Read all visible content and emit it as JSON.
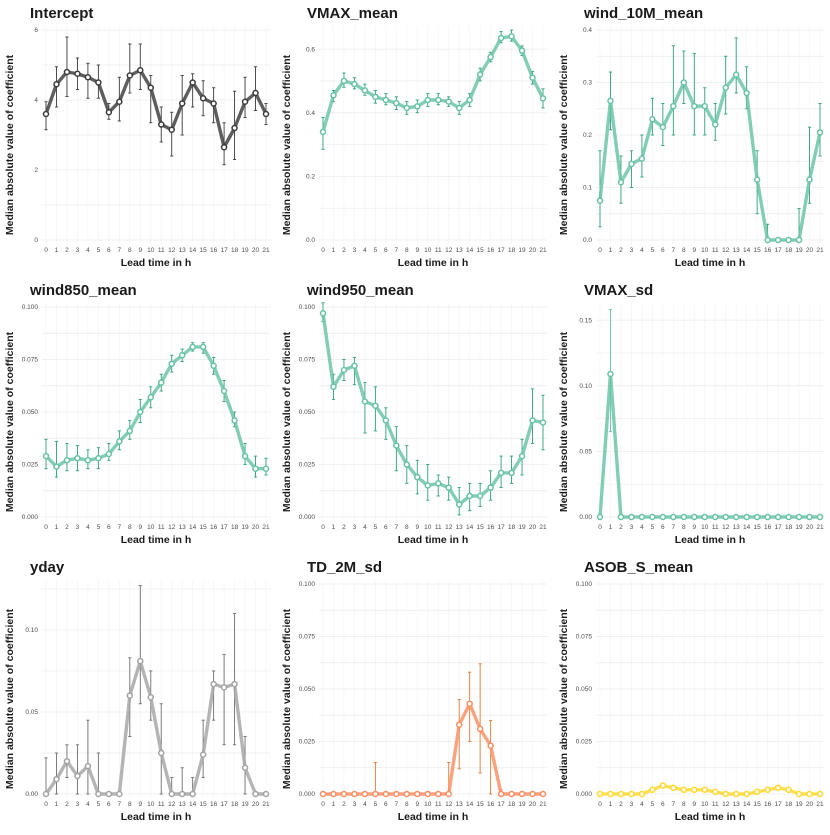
{
  "figure": {
    "xlabel": "Lead time in h",
    "ylabel": "Median absolute value of coefficient"
  },
  "chart_data": [
    {
      "type": "line",
      "title": "Intercept",
      "color": "#3a3a3a",
      "err_color": "#3a3a3a",
      "ylim": [
        0,
        6
      ],
      "yticks": [
        0,
        2,
        4,
        6
      ],
      "ytick_labels": [
        "0",
        "2",
        "4",
        "6"
      ],
      "x": [
        0,
        1,
        2,
        3,
        4,
        5,
        6,
        7,
        8,
        9,
        10,
        11,
        12,
        13,
        14,
        15,
        16,
        17,
        18,
        19,
        20,
        21
      ],
      "values": [
        3.6,
        4.45,
        4.8,
        4.75,
        4.65,
        4.5,
        3.65,
        3.95,
        4.7,
        4.85,
        4.35,
        3.3,
        3.15,
        3.9,
        4.5,
        4.05,
        3.9,
        2.65,
        3.2,
        3.95,
        4.2,
        3.6
      ],
      "lower": [
        3.15,
        3.8,
        4.1,
        4.3,
        4.05,
        4.05,
        3.45,
        3.4,
        4.2,
        4.3,
        3.35,
        2.8,
        2.4,
        3.0,
        3.8,
        3.55,
        3.35,
        2.15,
        2.3,
        3.5,
        3.7,
        3.3
      ],
      "upper": [
        3.95,
        4.95,
        5.8,
        5.2,
        5.05,
        5.0,
        3.9,
        4.65,
        5.6,
        5.6,
        4.7,
        3.8,
        3.65,
        4.7,
        4.75,
        4.55,
        4.35,
        3.35,
        4.25,
        4.65,
        4.95,
        3.9
      ]
    },
    {
      "type": "line",
      "title": "VMAX_mean",
      "color": "#66c2a5",
      "err_color": "#2ca07a",
      "ylim": [
        0,
        0.66
      ],
      "yticks": [
        0,
        0.2,
        0.4,
        0.6
      ],
      "ytick_labels": [
        "0.0",
        "0.2",
        "0.4",
        "0.6"
      ],
      "x": [
        0,
        1,
        2,
        3,
        4,
        5,
        6,
        7,
        8,
        9,
        10,
        11,
        12,
        13,
        14,
        15,
        16,
        17,
        18,
        19,
        20,
        21
      ],
      "values": [
        0.34,
        0.455,
        0.5,
        0.49,
        0.47,
        0.45,
        0.44,
        0.43,
        0.415,
        0.42,
        0.44,
        0.44,
        0.435,
        0.415,
        0.44,
        0.52,
        0.575,
        0.635,
        0.64,
        0.595,
        0.51,
        0.445
      ],
      "lower": [
        0.285,
        0.435,
        0.48,
        0.475,
        0.455,
        0.43,
        0.425,
        0.41,
        0.395,
        0.4,
        0.42,
        0.425,
        0.42,
        0.395,
        0.42,
        0.5,
        0.56,
        0.62,
        0.625,
        0.58,
        0.49,
        0.415
      ],
      "upper": [
        0.385,
        0.47,
        0.525,
        0.51,
        0.49,
        0.47,
        0.46,
        0.45,
        0.435,
        0.44,
        0.46,
        0.46,
        0.45,
        0.435,
        0.46,
        0.54,
        0.59,
        0.655,
        0.66,
        0.61,
        0.53,
        0.475
      ]
    },
    {
      "type": "line",
      "title": "wind_10M_mean",
      "color": "#66c2a5",
      "err_color": "#2ca07a",
      "ylim": [
        0,
        0.4
      ],
      "yticks": [
        0,
        0.1,
        0.2,
        0.3,
        0.4
      ],
      "ytick_labels": [
        "0.0",
        "0.1",
        "0.2",
        "0.3",
        "0.4"
      ],
      "x": [
        0,
        1,
        2,
        3,
        4,
        5,
        6,
        7,
        8,
        9,
        10,
        11,
        12,
        13,
        14,
        15,
        16,
        17,
        18,
        19,
        20,
        21
      ],
      "values": [
        0.075,
        0.265,
        0.11,
        0.145,
        0.155,
        0.23,
        0.215,
        0.255,
        0.3,
        0.255,
        0.255,
        0.22,
        0.29,
        0.315,
        0.28,
        0.115,
        0.0,
        0.0,
        0.0,
        0.0,
        0.115,
        0.205
      ],
      "lower": [
        0.025,
        0.21,
        0.07,
        0.1,
        0.12,
        0.2,
        0.18,
        0.2,
        0.26,
        0.2,
        0.2,
        0.19,
        0.24,
        0.28,
        0.25,
        0.05,
        0.0,
        0.0,
        0.0,
        0.0,
        0.07,
        0.16
      ],
      "upper": [
        0.17,
        0.32,
        0.16,
        0.17,
        0.2,
        0.27,
        0.26,
        0.37,
        0.36,
        0.355,
        0.29,
        0.26,
        0.35,
        0.385,
        0.33,
        0.17,
        0.03,
        0.0,
        0.0,
        0.06,
        0.215,
        0.26
      ]
    },
    {
      "type": "line",
      "title": "wind850_mean",
      "color": "#66c2a5",
      "err_color": "#2ca07a",
      "ylim": [
        0,
        0.1
      ],
      "yticks": [
        0,
        0.025,
        0.05,
        0.075,
        0.1
      ],
      "ytick_labels": [
        "0.000",
        "0.025",
        "0.050",
        "0.075",
        "0.100"
      ],
      "x": [
        0,
        1,
        2,
        3,
        4,
        5,
        6,
        7,
        8,
        9,
        10,
        11,
        12,
        13,
        14,
        15,
        16,
        17,
        18,
        19,
        20,
        21
      ],
      "values": [
        0.029,
        0.024,
        0.027,
        0.028,
        0.027,
        0.028,
        0.03,
        0.036,
        0.041,
        0.05,
        0.057,
        0.064,
        0.073,
        0.077,
        0.081,
        0.081,
        0.072,
        0.06,
        0.046,
        0.029,
        0.023,
        0.023
      ],
      "lower": [
        0.023,
        0.019,
        0.022,
        0.022,
        0.023,
        0.023,
        0.027,
        0.032,
        0.037,
        0.045,
        0.052,
        0.06,
        0.069,
        0.074,
        0.079,
        0.078,
        0.068,
        0.055,
        0.043,
        0.025,
        0.019,
        0.02
      ],
      "upper": [
        0.037,
        0.036,
        0.035,
        0.034,
        0.032,
        0.033,
        0.035,
        0.041,
        0.046,
        0.056,
        0.062,
        0.068,
        0.077,
        0.08,
        0.083,
        0.083,
        0.076,
        0.065,
        0.05,
        0.035,
        0.029,
        0.028
      ]
    },
    {
      "type": "line",
      "title": "wind950_mean",
      "color": "#66c2a5",
      "err_color": "#2ca07a",
      "ylim": [
        0,
        0.1
      ],
      "yticks": [
        0,
        0.025,
        0.05,
        0.075,
        0.1
      ],
      "ytick_labels": [
        "0.000",
        "0.025",
        "0.050",
        "0.075",
        "0.100"
      ],
      "x": [
        0,
        1,
        2,
        3,
        4,
        5,
        6,
        7,
        8,
        9,
        10,
        11,
        12,
        13,
        14,
        15,
        16,
        17,
        18,
        19,
        20,
        21
      ],
      "values": [
        0.097,
        0.062,
        0.07,
        0.072,
        0.055,
        0.053,
        0.046,
        0.034,
        0.025,
        0.019,
        0.015,
        0.016,
        0.014,
        0.006,
        0.01,
        0.01,
        0.014,
        0.021,
        0.021,
        0.029,
        0.046,
        0.045
      ],
      "lower": [
        0.093,
        0.056,
        0.065,
        0.063,
        0.04,
        0.041,
        0.037,
        0.022,
        0.016,
        0.011,
        0.008,
        0.01,
        0.008,
        0.001,
        0.003,
        0.005,
        0.008,
        0.014,
        0.016,
        0.02,
        0.035,
        0.032
      ],
      "upper": [
        0.102,
        0.068,
        0.075,
        0.076,
        0.064,
        0.062,
        0.052,
        0.043,
        0.034,
        0.027,
        0.025,
        0.02,
        0.019,
        0.014,
        0.016,
        0.016,
        0.022,
        0.029,
        0.029,
        0.037,
        0.061,
        0.058
      ]
    },
    {
      "type": "line",
      "title": "VMAX_sd",
      "color": "#66c2a5",
      "err_color": "#66c2a5",
      "ylim": [
        0,
        0.16
      ],
      "yticks": [
        0,
        0.05,
        0.1,
        0.15
      ],
      "ytick_labels": [
        "0.00",
        "0.05",
        "0.10",
        "0.15"
      ],
      "x": [
        0,
        1,
        2,
        3,
        4,
        5,
        6,
        7,
        8,
        9,
        10,
        11,
        12,
        13,
        14,
        15,
        16,
        17,
        18,
        19,
        20,
        21
      ],
      "values": [
        0.0,
        0.109,
        0.0,
        0.0,
        0.0,
        0.0,
        0.0,
        0.0,
        0.0,
        0.0,
        0.0,
        0.0,
        0.0,
        0.0,
        0.0,
        0.0,
        0.0,
        0.0,
        0.0,
        0.0,
        0.0,
        0.0
      ],
      "lower": [
        0.0,
        0.065,
        0.0,
        0.0,
        0.0,
        0.0,
        0.0,
        0.0,
        0.0,
        0.0,
        0.0,
        0.0,
        0.0,
        0.0,
        0.0,
        0.0,
        0.0,
        0.0,
        0.0,
        0.0,
        0.0,
        0.0
      ],
      "upper": [
        0.0,
        0.158,
        0.0,
        0.0,
        0.0,
        0.0,
        0.0,
        0.0,
        0.0,
        0.0,
        0.0,
        0.0,
        0.0,
        0.0,
        0.0,
        0.0,
        0.0,
        0.0,
        0.0,
        0.0,
        0.0,
        0.0
      ]
    },
    {
      "type": "line",
      "title": "yday",
      "color": "#a3a3a3",
      "err_color": "#6e6e6e",
      "ylim": [
        0,
        0.128
      ],
      "yticks": [
        0,
        0.05,
        0.1
      ],
      "ytick_labels": [
        "0.00",
        "0.05",
        "0.10"
      ],
      "x": [
        0,
        1,
        2,
        3,
        4,
        5,
        6,
        7,
        8,
        9,
        10,
        11,
        12,
        13,
        14,
        15,
        16,
        17,
        18,
        19,
        20,
        21
      ],
      "values": [
        0.0,
        0.009,
        0.02,
        0.011,
        0.017,
        0.0,
        0.0,
        0.0,
        0.06,
        0.081,
        0.059,
        0.025,
        0.0,
        0.0,
        0.0,
        0.024,
        0.067,
        0.065,
        0.067,
        0.016,
        0.0,
        0.0
      ],
      "lower": [
        0.0,
        0.0,
        0.01,
        0.0,
        0.0,
        0.0,
        0.0,
        0.0,
        0.035,
        0.055,
        0.045,
        0.0,
        0.0,
        0.0,
        0.0,
        0.01,
        0.045,
        0.03,
        0.03,
        0.0,
        0.0,
        0.0
      ],
      "upper": [
        0.022,
        0.025,
        0.03,
        0.03,
        0.045,
        0.025,
        0.0,
        0.0,
        0.083,
        0.127,
        0.075,
        0.055,
        0.01,
        0.016,
        0.01,
        0.045,
        0.075,
        0.085,
        0.11,
        0.035,
        0.0,
        0.0
      ]
    },
    {
      "type": "line",
      "title": "TD_2M_sd",
      "color": "#fc8d62",
      "err_color": "#e07a35",
      "ylim": [
        0,
        0.1
      ],
      "yticks": [
        0,
        0.025,
        0.05,
        0.075,
        0.1
      ],
      "ytick_labels": [
        "0.000",
        "0.025",
        "0.050",
        "0.075",
        "0.100"
      ],
      "x": [
        0,
        1,
        2,
        3,
        4,
        5,
        6,
        7,
        8,
        9,
        10,
        11,
        12,
        13,
        14,
        15,
        16,
        17,
        18,
        19,
        20,
        21
      ],
      "values": [
        0.0,
        0.0,
        0.0,
        0.0,
        0.0,
        0.0,
        0.0,
        0.0,
        0.0,
        0.0,
        0.0,
        0.0,
        0.0,
        0.033,
        0.043,
        0.031,
        0.023,
        0.0,
        0.0,
        0.0,
        0.0,
        0.0
      ],
      "lower": [
        0.0,
        0.0,
        0.0,
        0.0,
        0.0,
        0.0,
        0.0,
        0.0,
        0.0,
        0.0,
        0.0,
        0.0,
        0.0,
        0.012,
        0.025,
        0.01,
        0.0,
        0.0,
        0.0,
        0.0,
        0.0,
        0.0
      ],
      "upper": [
        0.0,
        0.0,
        0.0,
        0.0,
        0.0,
        0.015,
        0.0,
        0.0,
        0.0,
        0.0,
        0.0,
        0.0,
        0.015,
        0.045,
        0.058,
        0.062,
        0.035,
        0.002,
        0.0,
        0.0,
        0.0,
        0.0
      ]
    },
    {
      "type": "line",
      "title": "ASOB_S_mean",
      "color": "#ffd92f",
      "err_color": "#e6b800",
      "ylim": [
        0,
        0.1
      ],
      "yticks": [
        0,
        0.025,
        0.05,
        0.075,
        0.1
      ],
      "ytick_labels": [
        "0.000",
        "0.025",
        "0.050",
        "0.075",
        "0.100"
      ],
      "x": [
        0,
        1,
        2,
        3,
        4,
        5,
        6,
        7,
        8,
        9,
        10,
        11,
        12,
        13,
        14,
        15,
        16,
        17,
        18,
        19,
        20,
        21
      ],
      "values": [
        0.0,
        0.0,
        0.0,
        0.0,
        0.0,
        0.002,
        0.004,
        0.003,
        0.002,
        0.002,
        0.002,
        0.001,
        0.0,
        0.0,
        0.0,
        0.001,
        0.002,
        0.003,
        0.002,
        0.0,
        0.0,
        0.0
      ],
      "lower": [
        0.0,
        0.0,
        0.0,
        0.0,
        0.0,
        0.001,
        0.003,
        0.002,
        0.001,
        0.001,
        0.001,
        0.0,
        0.0,
        0.0,
        0.0,
        0.0,
        0.001,
        0.002,
        0.001,
        0.0,
        0.0,
        0.0
      ],
      "upper": [
        0.0,
        0.0,
        0.0,
        0.0,
        0.0,
        0.003,
        0.005,
        0.004,
        0.003,
        0.003,
        0.003,
        0.002,
        0.001,
        0.0,
        0.0,
        0.002,
        0.003,
        0.004,
        0.003,
        0.001,
        0.0,
        0.0
      ]
    }
  ]
}
